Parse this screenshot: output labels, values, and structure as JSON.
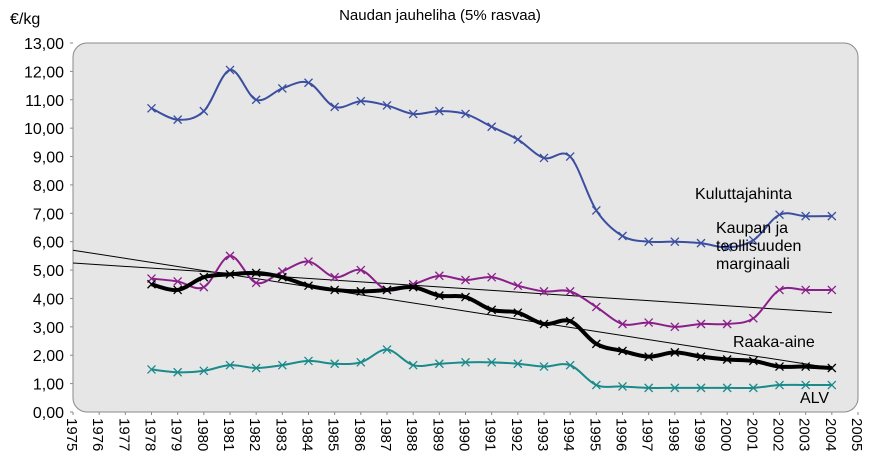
{
  "chart_data": {
    "type": "line",
    "title": "Naudan jauheliha (5% rasvaa)",
    "y_label": "€/kg",
    "xlim": [
      1975,
      2005
    ],
    "xticks": [
      1975,
      1976,
      1977,
      1978,
      1979,
      1980,
      1981,
      1982,
      1983,
      1984,
      1985,
      1986,
      1987,
      1988,
      1989,
      1990,
      1991,
      1992,
      1993,
      1994,
      1995,
      1996,
      1997,
      1998,
      1999,
      2000,
      2001,
      2002,
      2003,
      2004,
      2005
    ],
    "ylim": [
      0,
      13
    ],
    "yticks": [
      {
        "value": 0,
        "label": "0,00"
      },
      {
        "value": 1,
        "label": "1,00"
      },
      {
        "value": 2,
        "label": "2,00"
      },
      {
        "value": 3,
        "label": "3,00"
      },
      {
        "value": 4,
        "label": "4,00"
      },
      {
        "value": 5,
        "label": "5,00"
      },
      {
        "value": 6,
        "label": "6,00"
      },
      {
        "value": 7,
        "label": "7,00"
      },
      {
        "value": 8,
        "label": "8,00"
      },
      {
        "value": 9,
        "label": "9,00"
      },
      {
        "value": 10,
        "label": "10,00"
      },
      {
        "value": 11,
        "label": "11,00"
      },
      {
        "value": 12,
        "label": "12,00"
      },
      {
        "value": 13,
        "label": "13,00"
      }
    ],
    "x": [
      1978,
      1979,
      1980,
      1981,
      1982,
      1983,
      1984,
      1985,
      1986,
      1987,
      1988,
      1989,
      1990,
      1991,
      1992,
      1993,
      1994,
      1995,
      1996,
      1997,
      1998,
      1999,
      2000,
      2001,
      2002,
      2003,
      2004
    ],
    "series": [
      {
        "name": "Kuluttajahinta",
        "color": "#3b4ea0",
        "width": 2,
        "values": [
          10.7,
          10.3,
          10.6,
          12.05,
          11.0,
          11.4,
          11.6,
          10.75,
          10.95,
          10.8,
          10.5,
          10.6,
          10.5,
          10.05,
          9.6,
          8.95,
          9.0,
          7.1,
          6.2,
          6.0,
          6.0,
          5.95,
          5.8,
          6.05,
          6.95,
          6.9,
          6.9
        ]
      },
      {
        "name": "Kaupan ja\nteollisuuden\nmarginaali",
        "color": "#8a1f8a",
        "width": 2,
        "values": [
          4.7,
          4.6,
          4.4,
          5.5,
          4.55,
          4.95,
          5.3,
          4.75,
          5.0,
          4.3,
          4.5,
          4.8,
          4.65,
          4.75,
          4.45,
          4.25,
          4.25,
          3.7,
          3.1,
          3.15,
          3.0,
          3.1,
          3.1,
          3.3,
          4.3,
          4.3,
          4.3
        ]
      },
      {
        "name": "Raaka-aine",
        "color": "#000000",
        "width": 4,
        "values": [
          4.5,
          4.3,
          4.75,
          4.85,
          4.9,
          4.75,
          4.45,
          4.3,
          4.25,
          4.3,
          4.4,
          4.1,
          4.05,
          3.6,
          3.5,
          3.1,
          3.2,
          2.4,
          2.15,
          1.95,
          2.1,
          1.95,
          1.85,
          1.8,
          1.6,
          1.6,
          1.55
        ]
      },
      {
        "name": "ALV",
        "color": "#1b8a8a",
        "width": 2,
        "values": [
          1.5,
          1.4,
          1.45,
          1.65,
          1.55,
          1.65,
          1.8,
          1.7,
          1.75,
          2.2,
          1.65,
          1.7,
          1.75,
          1.75,
          1.7,
          1.6,
          1.65,
          0.95,
          0.9,
          0.85,
          0.85,
          0.85,
          0.85,
          0.85,
          0.95,
          0.95,
          0.95
        ]
      }
    ],
    "trendlines": [
      {
        "x": [
          1975,
          2004
        ],
        "values": [
          5.7,
          1.55
        ]
      },
      {
        "x": [
          1975,
          2004
        ],
        "values": [
          5.25,
          3.5
        ]
      }
    ]
  }
}
